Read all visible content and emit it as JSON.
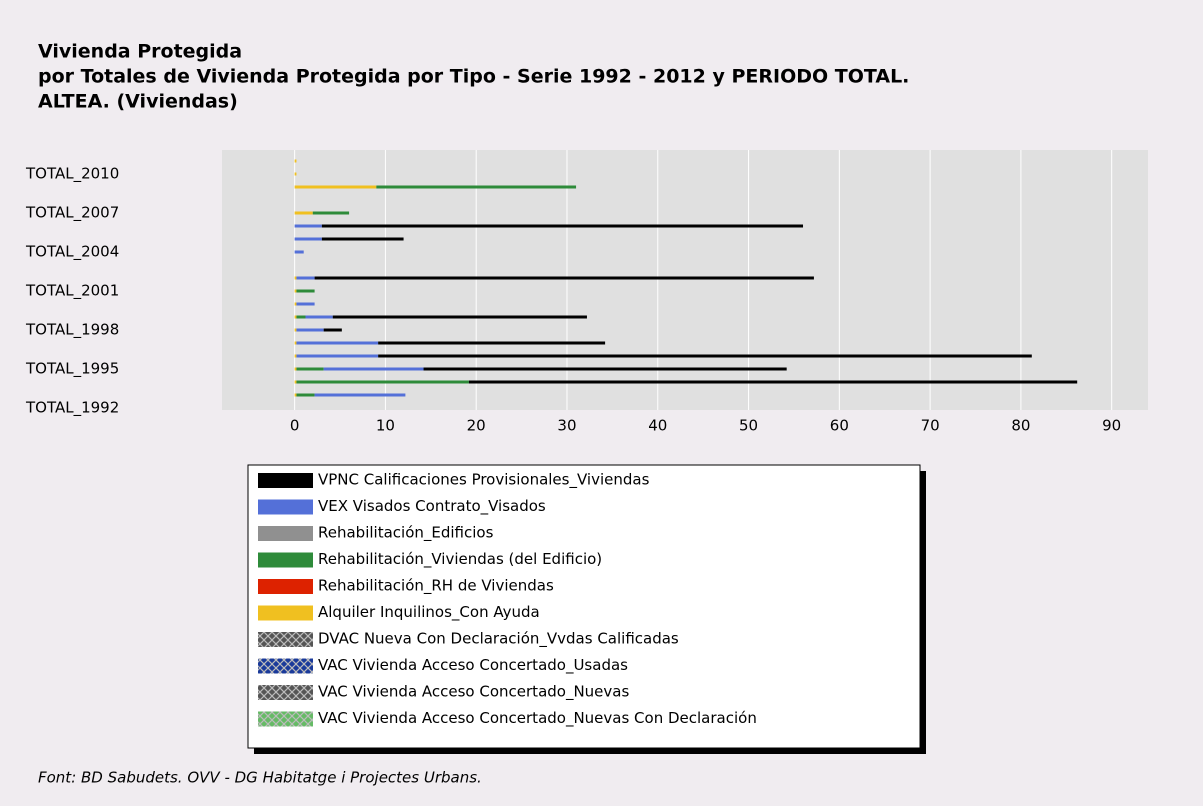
{
  "chart_data": {
    "type": "bar",
    "orientation": "horizontal",
    "stacked": true,
    "title": "Vivienda Protegida",
    "subtitle": "por Totales de Vivienda Protegida por Tipo - Serie 1992 - 2012 y PERIODO TOTAL.",
    "subtitle2": "ALTEA. (Viviendas)",
    "footnote": "Font: BD Sabudets. OVV - DG Habitatge i Projectes Urbans.",
    "categories": [
      "TOTAL_1992",
      null,
      null,
      "TOTAL_1995",
      null,
      null,
      "TOTAL_1998",
      null,
      null,
      "TOTAL_2001",
      null,
      null,
      "TOTAL_2004",
      null,
      null,
      "TOTAL_2007",
      null,
      null,
      "TOTAL_2010",
      null
    ],
    "xlim": [
      -8,
      94
    ],
    "xticks": [
      0,
      10,
      20,
      30,
      40,
      50,
      60,
      70,
      80,
      90
    ],
    "grid": true,
    "series": [
      {
        "name": "VPNC Calificaciones Provisionales_Viviendas",
        "color": "#000000",
        "values": [
          0,
          0,
          67,
          40,
          72,
          25,
          2,
          28,
          0,
          0,
          55,
          0,
          0,
          9,
          53,
          0,
          0,
          0,
          0,
          0
        ]
      },
      {
        "name": "VEX Visados Contrato_Visados",
        "color": "#5470d8",
        "values": [
          0,
          10,
          0,
          11,
          9,
          9,
          3,
          3,
          2,
          0,
          2,
          0,
          1,
          3,
          3,
          0,
          0,
          0,
          0,
          0
        ]
      },
      {
        "name": "Rehabilitación_Edificios",
        "color": "#909090",
        "values": [
          0,
          0,
          0,
          0,
          0,
          0,
          0,
          0,
          0,
          0,
          0,
          0,
          0,
          0,
          0,
          0,
          0,
          0,
          0,
          0
        ]
      },
      {
        "name": "Rehabilitación_Viviendas (del Edificio)",
        "color": "#2e8b3a",
        "values": [
          0,
          2,
          19,
          3,
          0,
          0,
          0,
          1,
          0,
          2,
          0,
          0,
          0,
          0,
          0,
          4,
          0,
          22,
          0,
          0
        ]
      },
      {
        "name": "Rehabilitación_RH de Viviendas",
        "color": "#dd2200",
        "values": [
          0,
          0,
          0,
          0,
          0,
          0,
          0,
          0,
          0,
          0,
          0,
          0,
          0,
          0,
          0,
          0,
          0,
          0,
          0,
          0
        ]
      },
      {
        "name": "Alquiler Inquilinos_Con Ayuda",
        "color": "#f0c020",
        "values": [
          0,
          0.2,
          0.2,
          0.2,
          0.2,
          0.2,
          0.2,
          0.2,
          0.2,
          0.2,
          0.2,
          0,
          0,
          0,
          0,
          2,
          0,
          9,
          0.2,
          0.2
        ]
      },
      {
        "name": "DVAC Nueva Con Declaración_Vvdas Calificadas",
        "color": "#555555",
        "hatched": true,
        "values": [
          0,
          0,
          0,
          0,
          0,
          0,
          0,
          0,
          0,
          0,
          0,
          0,
          0,
          0,
          0,
          0,
          0,
          0,
          0,
          0
        ]
      },
      {
        "name": "VAC Vivienda Acceso Concertado_Usadas",
        "color": "#1a3a9a",
        "hatched": true,
        "values": [
          0,
          0,
          0,
          0,
          0,
          0,
          0,
          0,
          0,
          0,
          0,
          0,
          0,
          0,
          0,
          0,
          0,
          0,
          0,
          0
        ]
      },
      {
        "name": "VAC Vivienda Acceso Concertado_Nuevas",
        "color": "#555555",
        "hatched": true,
        "values": [
          0,
          0,
          0,
          0,
          0,
          0,
          0,
          0,
          0,
          0,
          0,
          0,
          0,
          0,
          0,
          0,
          0,
          0,
          0,
          0
        ]
      },
      {
        "name": "VAC Vivienda Acceso Concertado_Nuevas Con Declaración",
        "color": "#66bb66",
        "hatched": true,
        "values": [
          0,
          0,
          0,
          0,
          0,
          0,
          0,
          0,
          0,
          0,
          0,
          0,
          0,
          0,
          0,
          0,
          0,
          0,
          0,
          0
        ]
      }
    ]
  }
}
